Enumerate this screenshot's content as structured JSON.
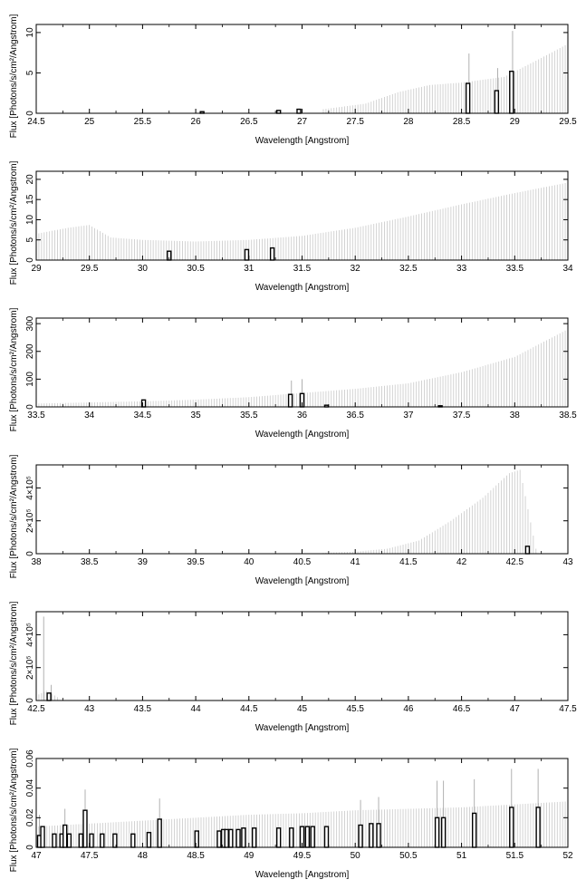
{
  "chart_data": [
    {
      "type": "bar",
      "xlabel": "Wavelength [Angstrom]",
      "ylabel": "Flux [Photons/s/cm²/Angstrom]",
      "xlim": [
        24.5,
        29.5
      ],
      "ylim": [
        0,
        11
      ],
      "xticks": [
        24.5,
        25,
        25.5,
        26,
        26.5,
        27,
        27.5,
        28,
        28.5,
        29,
        29.5
      ],
      "xtick_labels": [
        "24.5",
        "25",
        "25.5",
        "26",
        "26.5",
        "27",
        "27.5",
        "28",
        "28.5",
        "29",
        "29.5"
      ],
      "yticks": [
        0,
        5,
        10
      ],
      "ytick_labels": [
        "0",
        "5",
        "10"
      ],
      "bars": [
        {
          "x": 26.06,
          "y": 0.2
        },
        {
          "x": 26.78,
          "y": 0.35
        },
        {
          "x": 26.97,
          "y": 0.5
        },
        {
          "x": 28.56,
          "y": 3.7
        },
        {
          "x": 28.83,
          "y": 2.8
        },
        {
          "x": 28.97,
          "y": 5.2
        }
      ],
      "errorbars": [
        {
          "x": 28.57,
          "y": 7.4
        },
        {
          "x": 28.84,
          "y": 5.6
        },
        {
          "x": 28.98,
          "y": 10.2
        }
      ],
      "upper_limits": {
        "x_start": 27.2,
        "x_end": 29.5,
        "points": [
          [
            27.2,
            0.5
          ],
          [
            27.6,
            1.2
          ],
          [
            27.9,
            2.6
          ],
          [
            28.2,
            3.5
          ],
          [
            28.5,
            3.8
          ],
          [
            28.9,
            4.5
          ],
          [
            29.2,
            6.5
          ],
          [
            29.5,
            8.6
          ]
        ]
      }
    },
    {
      "type": "bar",
      "xlabel": "Wavelength [Angstrom]",
      "ylabel": "Flux [Photons/s/cm²/Angstrom]",
      "xlim": [
        29,
        34
      ],
      "ylim": [
        0,
        22
      ],
      "xticks": [
        29,
        29.5,
        30,
        30.5,
        31,
        31.5,
        32,
        32.5,
        33,
        33.5,
        34
      ],
      "xtick_labels": [
        "29",
        "29.5",
        "30",
        "30.5",
        "31",
        "31.5",
        "32",
        "32.5",
        "33",
        "33.5",
        "34"
      ],
      "yticks": [
        0,
        5,
        10,
        15,
        20
      ],
      "ytick_labels": [
        "0",
        "5",
        "10",
        "15",
        "20"
      ],
      "bars": [
        {
          "x": 30.25,
          "y": 2.2
        },
        {
          "x": 30.98,
          "y": 2.6
        },
        {
          "x": 31.22,
          "y": 3.0
        }
      ],
      "errorbars": [],
      "upper_limits": {
        "x_start": 29,
        "x_end": 34,
        "points": [
          [
            29,
            6.5
          ],
          [
            29.3,
            8.0
          ],
          [
            29.5,
            8.7
          ],
          [
            29.7,
            5.6
          ],
          [
            30,
            5.0
          ],
          [
            30.5,
            4.6
          ],
          [
            31,
            5.0
          ],
          [
            31.5,
            6.0
          ],
          [
            32,
            8.0
          ],
          [
            32.5,
            10.8
          ],
          [
            33,
            13.8
          ],
          [
            33.5,
            16.6
          ],
          [
            34,
            19.2
          ]
        ]
      }
    },
    {
      "type": "bar",
      "xlabel": "Wavelength [Angstrom]",
      "ylabel": "Flux [Photons/s/cm²/Angstrom]",
      "xlim": [
        33.5,
        38.5
      ],
      "ylim": [
        0,
        320
      ],
      "xticks": [
        33.5,
        34,
        34.5,
        35,
        35.5,
        36,
        36.5,
        37,
        37.5,
        38,
        38.5
      ],
      "xtick_labels": [
        "33.5",
        "34",
        "34.5",
        "35",
        "35.5",
        "36",
        "36.5",
        "37",
        "37.5",
        "38",
        "38.5"
      ],
      "yticks": [
        0,
        100,
        200,
        300
      ],
      "ytick_labels": [
        "0",
        "100",
        "200",
        "300"
      ],
      "bars": [
        {
          "x": 34.51,
          "y": 25
        },
        {
          "x": 35.89,
          "y": 45
        },
        {
          "x": 36.0,
          "y": 48
        },
        {
          "x": 36.23,
          "y": 6
        },
        {
          "x": 37.3,
          "y": 4
        }
      ],
      "errorbars": [
        {
          "x": 35.9,
          "y": 95
        },
        {
          "x": 36.0,
          "y": 100
        }
      ],
      "upper_limits": {
        "x_start": 33.5,
        "x_end": 38.5,
        "points": [
          [
            33.5,
            12
          ],
          [
            34,
            16
          ],
          [
            34.5,
            20
          ],
          [
            35,
            26
          ],
          [
            35.5,
            35
          ],
          [
            36,
            50
          ],
          [
            36.5,
            65
          ],
          [
            37,
            85
          ],
          [
            37.5,
            125
          ],
          [
            38,
            180
          ],
          [
            38.5,
            280
          ]
        ]
      }
    },
    {
      "type": "bar",
      "xlabel": "Wavelength [Angstrom]",
      "ylabel": "Flux [Photons/s/cm²/Angstrom]",
      "xlim": [
        38,
        43
      ],
      "ylim": [
        0,
        540000
      ],
      "xticks": [
        38,
        38.5,
        39,
        39.5,
        40,
        40.5,
        41,
        41.5,
        42,
        42.5,
        43
      ],
      "xtick_labels": [
        "38",
        "38.5",
        "39",
        "39.5",
        "40",
        "40.5",
        "41",
        "41.5",
        "42",
        "42.5",
        "43"
      ],
      "yticks": [
        0,
        200000,
        400000
      ],
      "ytick_labels": [
        "0",
        "2×10⁵",
        "4×10⁵"
      ],
      "bars": [
        {
          "x": 42.62,
          "y": 45000
        }
      ],
      "errorbars": [],
      "upper_limits": {
        "x_start": 40.7,
        "x_end": 42.7,
        "points": [
          [
            40.7,
            5000
          ],
          [
            41,
            12000
          ],
          [
            41.3,
            30000
          ],
          [
            41.6,
            80000
          ],
          [
            41.9,
            200000
          ],
          [
            42.2,
            340000
          ],
          [
            42.45,
            490000
          ],
          [
            42.55,
            510000
          ],
          [
            42.7,
            30000
          ]
        ]
      }
    },
    {
      "type": "bar",
      "xlabel": "Wavelength [Angstrom]",
      "ylabel": "Flux [Photons/s/cm²/Angstrom]",
      "xlim": [
        42.5,
        47.5
      ],
      "ylim": [
        0,
        540000
      ],
      "xticks": [
        42.5,
        43,
        43.5,
        44,
        44.5,
        45,
        45.5,
        46,
        46.5,
        47,
        47.5
      ],
      "xtick_labels": [
        "42.5",
        "43",
        "43.5",
        "44",
        "44.5",
        "45",
        "45.5",
        "46",
        "46.5",
        "47",
        "47.5"
      ],
      "yticks": [
        0,
        200000,
        400000
      ],
      "ytick_labels": [
        "0",
        "2×10⁵",
        "4×10⁵"
      ],
      "bars": [
        {
          "x": 42.62,
          "y": 45000
        }
      ],
      "errorbars": [
        {
          "x": 42.57,
          "y": 510000
        },
        {
          "x": 42.64,
          "y": 95000
        }
      ],
      "upper_limits": {
        "x_start": 42.5,
        "x_end": 42.7,
        "points": [
          [
            42.5,
            30000
          ],
          [
            42.6,
            60000
          ],
          [
            42.7,
            20000
          ]
        ]
      }
    },
    {
      "type": "bar",
      "xlabel": "Wavelength [Angstrom]",
      "ylabel": "Flux [Photons/s/cm²/Angstrom]",
      "xlim": [
        47,
        52
      ],
      "ylim": [
        0,
        0.06
      ],
      "xticks": [
        47,
        47.5,
        48,
        48.5,
        49,
        49.5,
        50,
        50.5,
        51,
        51.5,
        52
      ],
      "xtick_labels": [
        "47",
        "47.5",
        "48",
        "48.5",
        "49",
        "49.5",
        "50",
        "50.5",
        "51",
        "51.5",
        "52"
      ],
      "yticks": [
        0,
        0.02,
        0.04,
        0.06
      ],
      "ytick_labels": [
        "0",
        "0.02",
        "0.04",
        "0.06"
      ],
      "bars": [
        {
          "x": 47.03,
          "y": 0.008
        },
        {
          "x": 47.06,
          "y": 0.014
        },
        {
          "x": 47.17,
          "y": 0.009
        },
        {
          "x": 47.24,
          "y": 0.009
        },
        {
          "x": 47.27,
          "y": 0.015
        },
        {
          "x": 47.31,
          "y": 0.009
        },
        {
          "x": 47.42,
          "y": 0.009
        },
        {
          "x": 47.46,
          "y": 0.025
        },
        {
          "x": 47.52,
          "y": 0.009
        },
        {
          "x": 47.62,
          "y": 0.009
        },
        {
          "x": 47.74,
          "y": 0.009
        },
        {
          "x": 47.91,
          "y": 0.009
        },
        {
          "x": 48.06,
          "y": 0.01
        },
        {
          "x": 48.16,
          "y": 0.019
        },
        {
          "x": 48.51,
          "y": 0.011
        },
        {
          "x": 48.72,
          "y": 0.011
        },
        {
          "x": 48.76,
          "y": 0.012
        },
        {
          "x": 48.79,
          "y": 0.012
        },
        {
          "x": 48.83,
          "y": 0.012
        },
        {
          "x": 48.9,
          "y": 0.012
        },
        {
          "x": 48.95,
          "y": 0.013
        },
        {
          "x": 49.05,
          "y": 0.013
        },
        {
          "x": 49.28,
          "y": 0.013
        },
        {
          "x": 49.4,
          "y": 0.013
        },
        {
          "x": 49.5,
          "y": 0.014
        },
        {
          "x": 49.55,
          "y": 0.014
        },
        {
          "x": 49.6,
          "y": 0.014
        },
        {
          "x": 49.73,
          "y": 0.014
        },
        {
          "x": 50.05,
          "y": 0.015
        },
        {
          "x": 50.15,
          "y": 0.016
        },
        {
          "x": 50.22,
          "y": 0.016
        },
        {
          "x": 50.77,
          "y": 0.02
        },
        {
          "x": 50.83,
          "y": 0.02
        },
        {
          "x": 51.12,
          "y": 0.023
        },
        {
          "x": 51.47,
          "y": 0.027
        },
        {
          "x": 51.72,
          "y": 0.027
        }
      ],
      "errorbars": [
        {
          "x": 47.03,
          "y": 0.022
        },
        {
          "x": 47.27,
          "y": 0.026
        },
        {
          "x": 47.46,
          "y": 0.039
        },
        {
          "x": 48.16,
          "y": 0.033
        },
        {
          "x": 50.05,
          "y": 0.032
        },
        {
          "x": 50.22,
          "y": 0.034
        },
        {
          "x": 50.77,
          "y": 0.045
        },
        {
          "x": 50.83,
          "y": 0.045
        },
        {
          "x": 51.12,
          "y": 0.046
        },
        {
          "x": 51.47,
          "y": 0.053
        },
        {
          "x": 51.72,
          "y": 0.053
        }
      ],
      "upper_limits": {
        "x_start": 47,
        "x_end": 52,
        "points": [
          [
            47,
            0.014
          ],
          [
            47.5,
            0.016
          ],
          [
            48,
            0.018
          ],
          [
            48.5,
            0.02
          ],
          [
            49,
            0.022
          ],
          [
            49.5,
            0.023
          ],
          [
            50,
            0.025
          ],
          [
            50.5,
            0.026
          ],
          [
            51,
            0.027
          ],
          [
            51.5,
            0.029
          ],
          [
            52,
            0.031
          ]
        ]
      }
    }
  ]
}
